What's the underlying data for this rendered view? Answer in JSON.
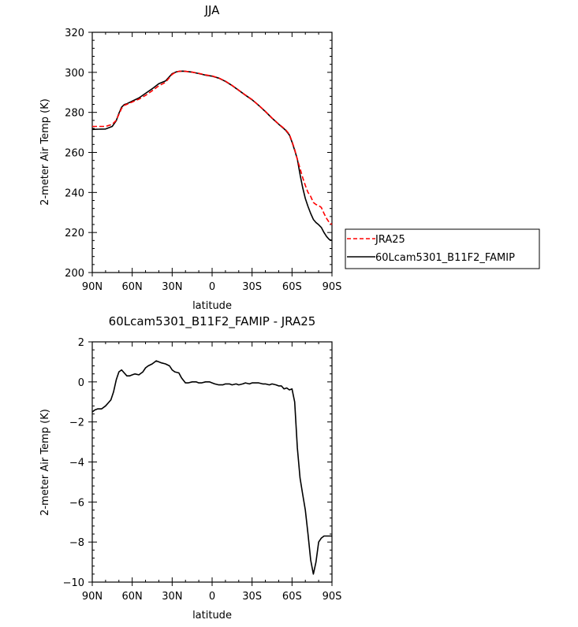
{
  "chart_data": [
    {
      "type": "line",
      "title": "JJA",
      "xlabel": "latitude",
      "ylabel": "2-meter Air Temp (K)",
      "xlim": [
        90,
        -90
      ],
      "ylim": [
        200,
        320
      ],
      "x_ticks": [
        90,
        60,
        30,
        0,
        -30,
        -60,
        -90
      ],
      "x_tick_labels": [
        "90N",
        "60N",
        "30N",
        "0",
        "30S",
        "60S",
        "90S"
      ],
      "y_ticks": [
        200,
        220,
        240,
        260,
        280,
        300,
        320
      ],
      "y_tick_labels": [
        "200",
        "220",
        "240",
        "260",
        "280",
        "300",
        "320"
      ],
      "legend_position": "right, outside plot",
      "series": [
        {
          "name": "JRA25",
          "color": "#ff0000",
          "dash": "dashed",
          "x": [
            90,
            85,
            80,
            75,
            72,
            70,
            68,
            66,
            64,
            60,
            55,
            50,
            45,
            40,
            35,
            30,
            27,
            25,
            22,
            20,
            15,
            10,
            5,
            0,
            -5,
            -10,
            -15,
            -20,
            -25,
            -30,
            -35,
            -40,
            -45,
            -50,
            -55,
            -58,
            -60,
            -62,
            -64,
            -66,
            -68,
            -70,
            -72,
            -74,
            -76,
            -78,
            -80,
            -82,
            -84,
            -86,
            -88,
            -90
          ],
          "y": [
            273,
            273,
            273,
            274,
            276,
            279,
            282,
            283.5,
            284,
            285.2,
            286.6,
            288.5,
            290.8,
            293.3,
            295,
            299,
            300.2,
            300.5,
            300.6,
            300.5,
            300.1,
            299.5,
            298.7,
            298.2,
            297.2,
            295.6,
            293.5,
            291.1,
            288.7,
            286.4,
            283.5,
            280.5,
            277.2,
            274.2,
            271.5,
            269,
            265.5,
            261.5,
            256.5,
            252,
            247.5,
            243.5,
            240,
            238,
            235,
            234,
            233.5,
            232.5,
            229.5,
            227,
            225,
            224
          ]
        },
        {
          "name": "60Lcam5301_B11F2_FAMIP",
          "color": "#000000",
          "dash": "solid",
          "x": [
            90,
            85,
            80,
            75,
            72,
            70,
            68,
            66,
            64,
            60,
            55,
            50,
            45,
            40,
            35,
            30,
            27,
            25,
            22,
            20,
            15,
            10,
            5,
            0,
            -5,
            -10,
            -15,
            -20,
            -25,
            -30,
            -35,
            -40,
            -45,
            -50,
            -55,
            -58,
            -60,
            -62,
            -64,
            -66,
            -68,
            -70,
            -72,
            -74,
            -76,
            -78,
            -80,
            -82,
            -84,
            -86,
            -88,
            -90
          ],
          "y": [
            271.5,
            271.6,
            271.7,
            273,
            275.8,
            279.5,
            282.6,
            283.9,
            284.3,
            285.6,
            287.2,
            289.5,
            291.8,
            294.3,
            295.7,
            299.3,
            300.2,
            300.5,
            300.6,
            300.5,
            300.1,
            299.4,
            298.6,
            298.1,
            297.1,
            295.5,
            293.4,
            291,
            288.6,
            286.3,
            283.5,
            280.4,
            277.1,
            274.1,
            271.2,
            268.7,
            265.2,
            261.1,
            256.6,
            249,
            242.5,
            237,
            233,
            229.5,
            226.5,
            225,
            223.9,
            222.5,
            220,
            218,
            216.5,
            216
          ]
        }
      ]
    },
    {
      "type": "line",
      "title": "60Lcam5301_B11F2_FAMIP - JRA25",
      "xlabel": "latitude",
      "ylabel": "2-meter Air Temp (K)",
      "xlim": [
        90,
        -90
      ],
      "ylim": [
        -10,
        2
      ],
      "x_ticks": [
        90,
        60,
        30,
        0,
        -30,
        -60,
        -90
      ],
      "x_tick_labels": [
        "90N",
        "60N",
        "30N",
        "0",
        "30S",
        "60S",
        "90S"
      ],
      "y_ticks": [
        -10,
        -8,
        -6,
        -4,
        -2,
        0,
        2
      ],
      "y_tick_labels": [
        "−10",
        "−8",
        "−6",
        "−4",
        "−2",
        "0",
        "2"
      ],
      "series": [
        {
          "color": "#000000",
          "dash": "solid",
          "x": [
            90,
            88,
            86,
            83,
            80,
            78,
            76,
            74,
            72,
            70,
            68,
            66,
            64,
            62,
            60,
            58,
            55,
            52,
            50,
            48,
            45,
            42,
            40,
            38,
            35,
            32,
            30,
            28,
            25,
            23,
            20,
            18,
            15,
            12,
            10,
            8,
            5,
            2,
            0,
            -2,
            -5,
            -8,
            -10,
            -13,
            -15,
            -18,
            -20,
            -23,
            -25,
            -28,
            -30,
            -33,
            -35,
            -38,
            -40,
            -43,
            -45,
            -48,
            -50,
            -52,
            -54,
            -56,
            -58,
            -60,
            -62,
            -64,
            -66,
            -68,
            -70,
            -72,
            -74,
            -76,
            -78,
            -80,
            -82,
            -84,
            -86,
            -88,
            -90
          ],
          "y": [
            -1.5,
            -1.4,
            -1.35,
            -1.35,
            -1.2,
            -1.05,
            -0.9,
            -0.5,
            0.1,
            0.5,
            0.6,
            0.45,
            0.3,
            0.3,
            0.35,
            0.4,
            0.35,
            0.5,
            0.7,
            0.8,
            0.9,
            1.05,
            1.0,
            0.95,
            0.9,
            0.8,
            0.6,
            0.5,
            0.45,
            0.2,
            -0.05,
            -0.05,
            0.0,
            0.0,
            -0.05,
            -0.05,
            0.0,
            0.0,
            -0.05,
            -0.1,
            -0.15,
            -0.15,
            -0.1,
            -0.1,
            -0.15,
            -0.1,
            -0.15,
            -0.1,
            -0.05,
            -0.1,
            -0.05,
            -0.05,
            -0.05,
            -0.1,
            -0.1,
            -0.15,
            -0.1,
            -0.15,
            -0.2,
            -0.2,
            -0.35,
            -0.3,
            -0.4,
            -0.35,
            -1.0,
            -3.3,
            -4.8,
            -5.6,
            -6.4,
            -7.6,
            -8.9,
            -9.6,
            -9.0,
            -8.0,
            -7.8,
            -7.7,
            -7.7,
            -7.7,
            -7.7
          ]
        }
      ]
    }
  ]
}
